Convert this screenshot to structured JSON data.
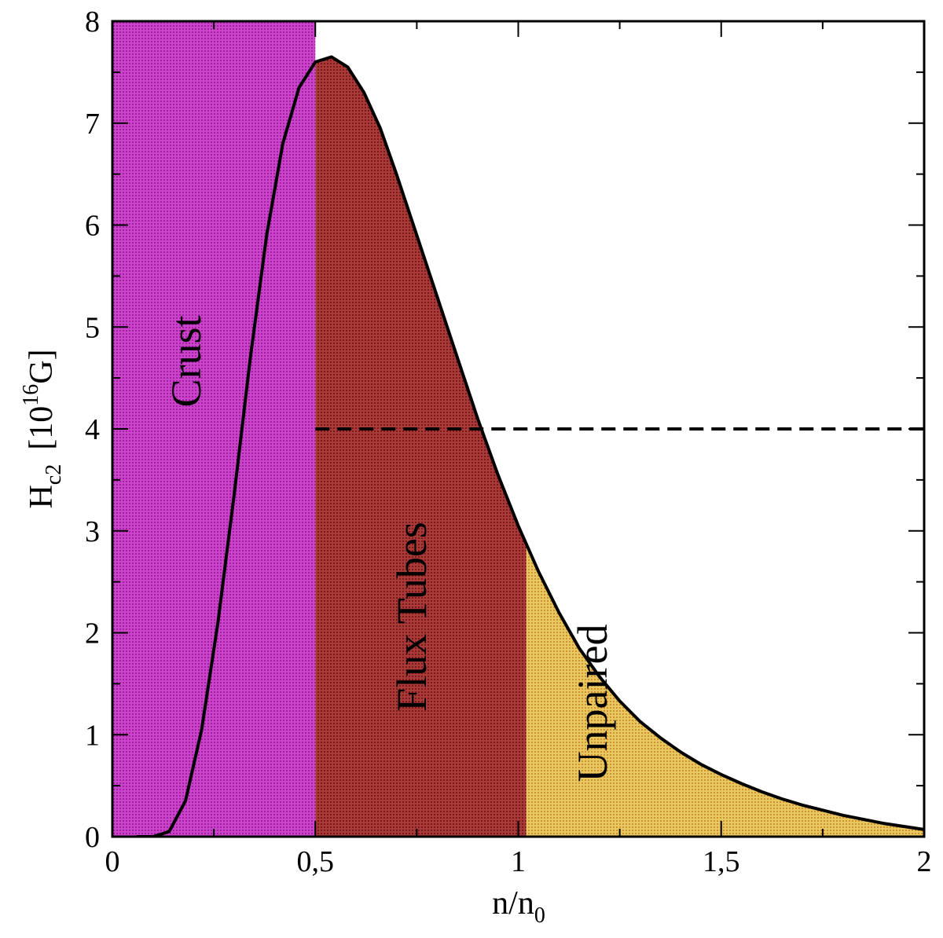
{
  "chart_data": {
    "type": "area",
    "xlabel": {
      "main": "n/n",
      "sub": "0"
    },
    "ylabel": {
      "main": "H",
      "sub": "c2",
      "bracket_open": "[10",
      "sup": "16",
      "unit": "G]"
    },
    "xlim": [
      0,
      2
    ],
    "ylim": [
      0,
      8
    ],
    "x_ticks": [
      0,
      0.5,
      1,
      1.5,
      2
    ],
    "x_tick_labels": [
      "0",
      "0,5",
      "1",
      "1,5",
      "2"
    ],
    "y_ticks": [
      0,
      1,
      2,
      3,
      4,
      5,
      6,
      7,
      8
    ],
    "y_tick_labels": [
      "0",
      "1",
      "2",
      "3",
      "4",
      "5",
      "6",
      "7",
      "8"
    ],
    "grid": false,
    "regions": [
      {
        "label": "Crust",
        "x_range": [
          0,
          0.5
        ],
        "fill": "full-height",
        "color": "#cc44cc",
        "pattern_color": "#a020a0"
      },
      {
        "label": "Flux Tubes",
        "x_range": [
          0.5,
          1.02
        ],
        "fill": "under-curve",
        "color": "#a83a3a",
        "pattern_color": "#7a1818"
      },
      {
        "label": "Unpaired",
        "x_range": [
          1.02,
          2
        ],
        "fill": "under-curve",
        "color": "#e8c860",
        "pattern_color": "#d09030"
      }
    ],
    "threshold": {
      "y": 4,
      "x_range": [
        0.5,
        2
      ],
      "style": "dashed"
    },
    "series": [
      {
        "x": [
          0.06,
          0.1,
          0.14,
          0.18,
          0.22,
          0.26,
          0.3,
          0.34,
          0.38,
          0.42,
          0.46,
          0.5,
          0.54,
          0.58,
          0.62,
          0.66,
          0.7,
          0.75,
          0.8,
          0.85,
          0.9,
          0.95,
          1.0,
          1.05,
          1.1,
          1.15,
          1.2,
          1.25,
          1.3,
          1.35,
          1.4,
          1.45,
          1.5,
          1.55,
          1.6,
          1.65,
          1.7,
          1.75,
          1.8,
          1.85,
          1.9,
          1.95,
          2.0
        ],
        "y": [
          0.0,
          0.0,
          0.05,
          0.35,
          1.05,
          2.1,
          3.35,
          4.7,
          5.9,
          6.8,
          7.35,
          7.6,
          7.65,
          7.55,
          7.3,
          6.95,
          6.5,
          5.9,
          5.3,
          4.7,
          4.1,
          3.55,
          3.05,
          2.6,
          2.2,
          1.85,
          1.57,
          1.33,
          1.13,
          0.97,
          0.83,
          0.71,
          0.61,
          0.52,
          0.44,
          0.37,
          0.31,
          0.26,
          0.21,
          0.17,
          0.13,
          0.1,
          0.07
        ]
      }
    ]
  }
}
